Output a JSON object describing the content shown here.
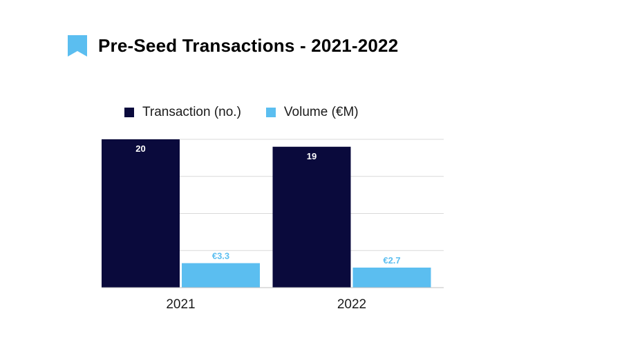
{
  "header": {
    "title": "Pre-Seed Transactions - 2021-2022",
    "icon": "bookmark-icon",
    "icon_color": "#5BBEF0"
  },
  "legend": [
    {
      "name": "Transaction (no.)",
      "color": "#0A0A3C"
    },
    {
      "name": "Volume (€M)",
      "color": "#5BBEF0"
    }
  ],
  "chart_data": {
    "type": "bar",
    "categories": [
      "2021",
      "2022"
    ],
    "series": [
      {
        "name": "Transaction (no.)",
        "values": [
          20,
          19
        ],
        "labels": [
          "20",
          "19"
        ],
        "color": "#0A0A3C",
        "label_color": "#ffffff"
      },
      {
        "name": "Volume (€M)",
        "values": [
          3.3,
          2.7
        ],
        "labels": [
          "€3.3",
          "€2.7"
        ],
        "color": "#5BBEF0",
        "label_color": "#5BBEF0"
      }
    ],
    "ylim": [
      0,
      20
    ],
    "grid": true,
    "legend_position": "top-left"
  }
}
